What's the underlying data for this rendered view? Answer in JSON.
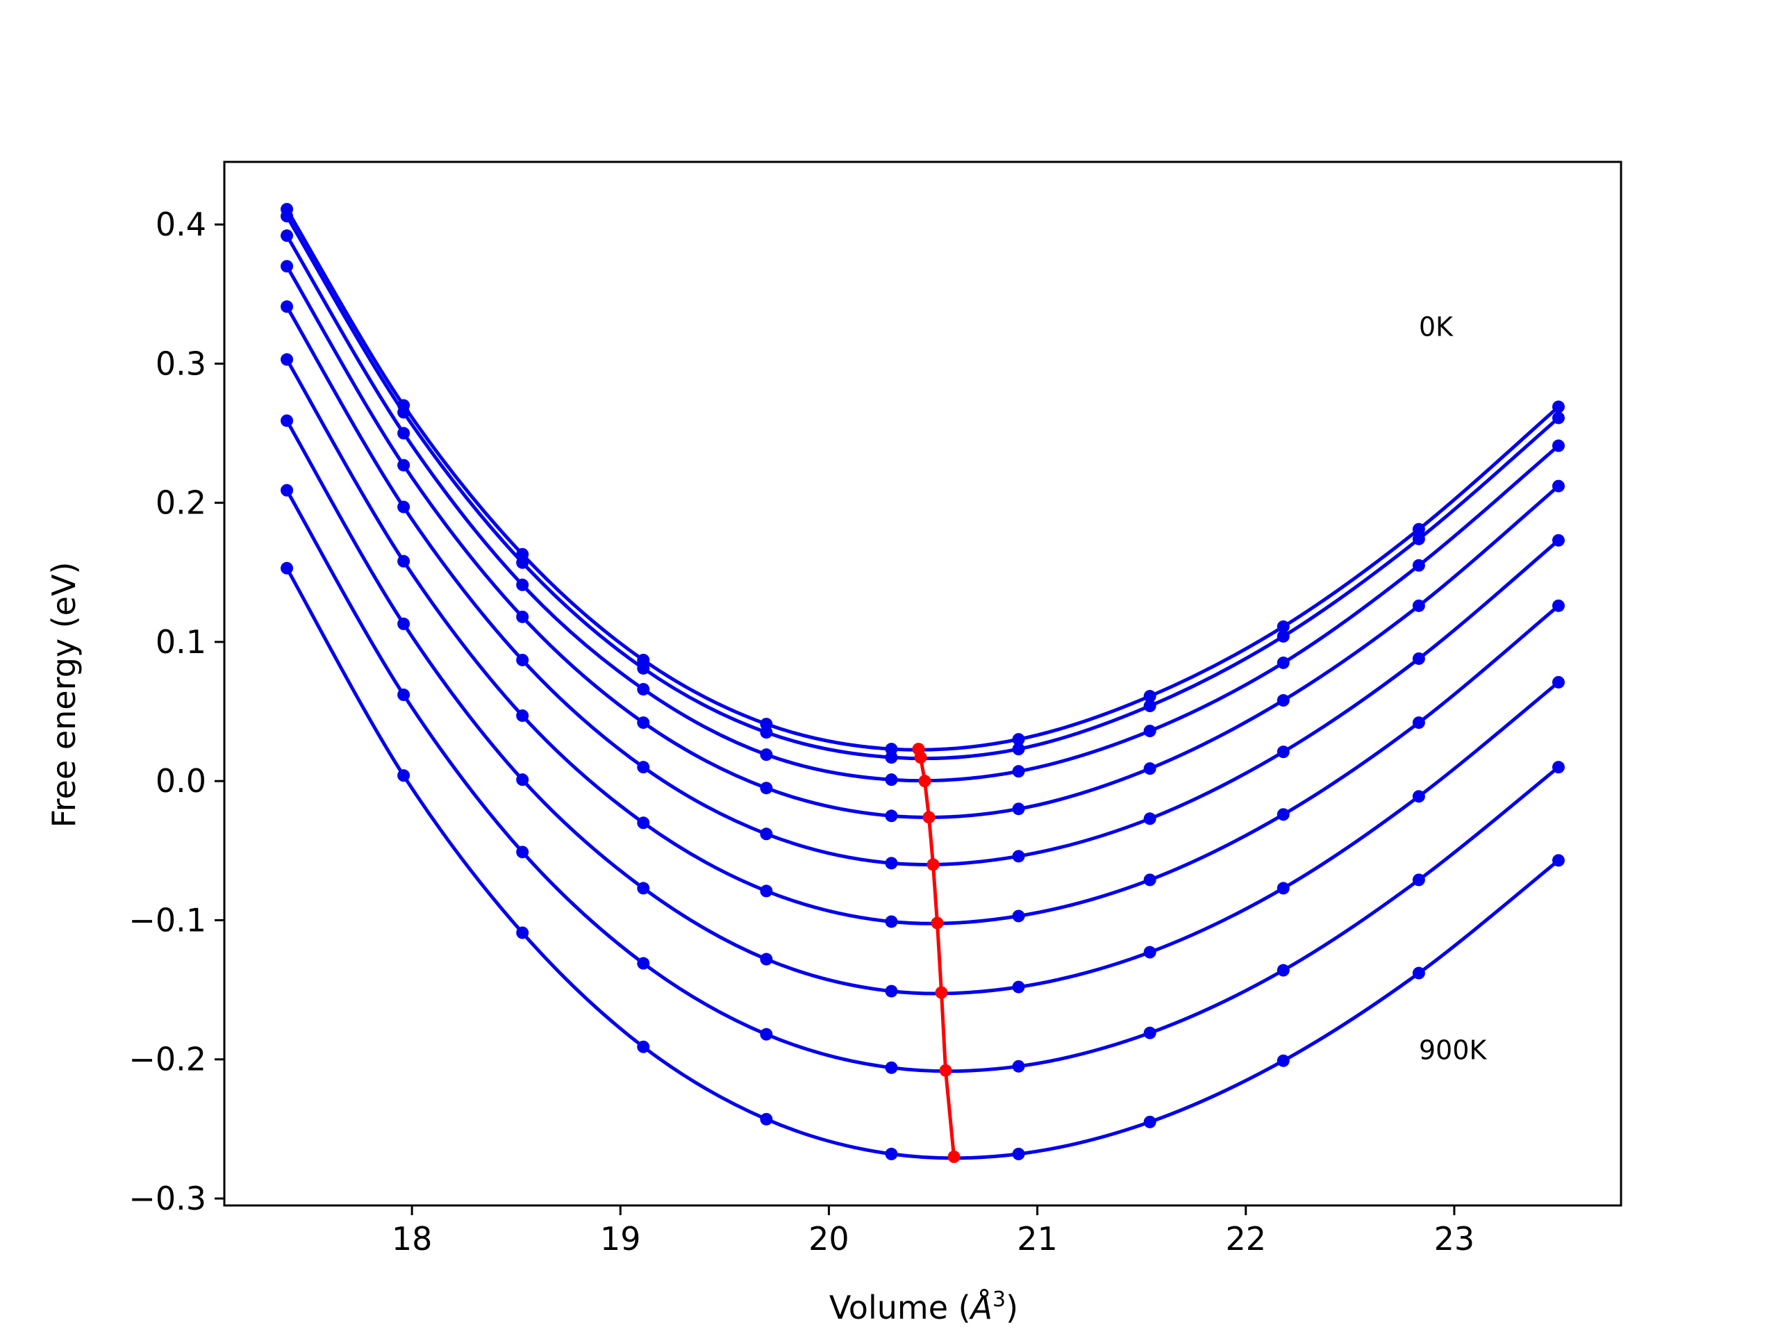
{
  "chart_data": {
    "type": "line",
    "title": "",
    "xlabel": "Volume (",
    "xlabel_symbol": "Å",
    "xlabel_exp": "3",
    "xlabel_end": ")",
    "ylabel": "Free energy (eV)",
    "xlim": [
      17.1,
      23.8
    ],
    "ylim": [
      -0.305,
      0.445
    ],
    "xticks": [
      18,
      19,
      20,
      21,
      22,
      23
    ],
    "xtick_labels": [
      "18",
      "19",
      "20",
      "21",
      "22",
      "23"
    ],
    "yticks": [
      -0.3,
      -0.2,
      -0.1,
      0.0,
      0.1,
      0.2,
      0.3,
      0.4
    ],
    "ytick_labels": [
      "−0.3",
      "−0.2",
      "−0.1",
      "0.0",
      "0.1",
      "0.2",
      "0.3",
      "0.4"
    ],
    "grid": false,
    "legend": "none",
    "annotations": [
      {
        "text": "0K",
        "x": 22.83,
        "y": 0.32
      },
      {
        "text": "900K",
        "x": 22.83,
        "y": -0.2
      }
    ],
    "x": [
      17.4,
      17.96,
      18.53,
      19.11,
      19.7,
      20.3,
      20.91,
      21.54,
      22.18,
      22.83,
      23.5
    ],
    "series": [
      {
        "color": "#0000ee",
        "values": [
          0.411,
          0.27,
          0.163,
          0.087,
          0.041,
          0.023,
          0.03,
          0.061,
          0.111,
          0.181,
          0.269
        ]
      },
      {
        "color": "#0000ee",
        "values": [
          0.406,
          0.265,
          0.157,
          0.081,
          0.035,
          0.017,
          0.023,
          0.054,
          0.104,
          0.174,
          0.261
        ]
      },
      {
        "color": "#0000ee",
        "values": [
          0.392,
          0.25,
          0.141,
          0.066,
          0.019,
          0.001,
          0.007,
          0.036,
          0.085,
          0.155,
          0.241
        ]
      },
      {
        "color": "#0000ee",
        "values": [
          0.37,
          0.227,
          0.118,
          0.042,
          -0.005,
          -0.025,
          -0.02,
          0.009,
          0.058,
          0.126,
          0.212
        ]
      },
      {
        "color": "#0000ee",
        "values": [
          0.341,
          0.197,
          0.087,
          0.01,
          -0.038,
          -0.059,
          -0.054,
          -0.027,
          0.021,
          0.088,
          0.173
        ]
      },
      {
        "color": "#0000ee",
        "values": [
          0.303,
          0.158,
          0.047,
          -0.03,
          -0.079,
          -0.101,
          -0.097,
          -0.071,
          -0.024,
          0.042,
          0.126
        ]
      },
      {
        "color": "#0000ee",
        "values": [
          0.259,
          0.113,
          0.001,
          -0.077,
          -0.128,
          -0.151,
          -0.148,
          -0.123,
          -0.077,
          -0.011,
          0.071
        ]
      },
      {
        "color": "#0000ee",
        "values": [
          0.209,
          0.062,
          -0.051,
          -0.131,
          -0.182,
          -0.206,
          -0.205,
          -0.181,
          -0.136,
          -0.071,
          0.01
        ]
      },
      {
        "color": "#0000ee",
        "values": [
          0.153,
          0.004,
          -0.109,
          -0.191,
          -0.243,
          -0.268,
          -0.268,
          -0.245,
          -0.201,
          -0.138,
          -0.057
        ]
      }
    ],
    "minima": {
      "color": "#ff0000",
      "x": [
        20.43,
        20.44,
        20.46,
        20.48,
        20.5,
        20.52,
        20.54,
        20.56,
        20.6
      ],
      "y": [
        0.023,
        0.017,
        0.0,
        -0.026,
        -0.06,
        -0.102,
        -0.152,
        -0.208,
        -0.27
      ]
    }
  }
}
